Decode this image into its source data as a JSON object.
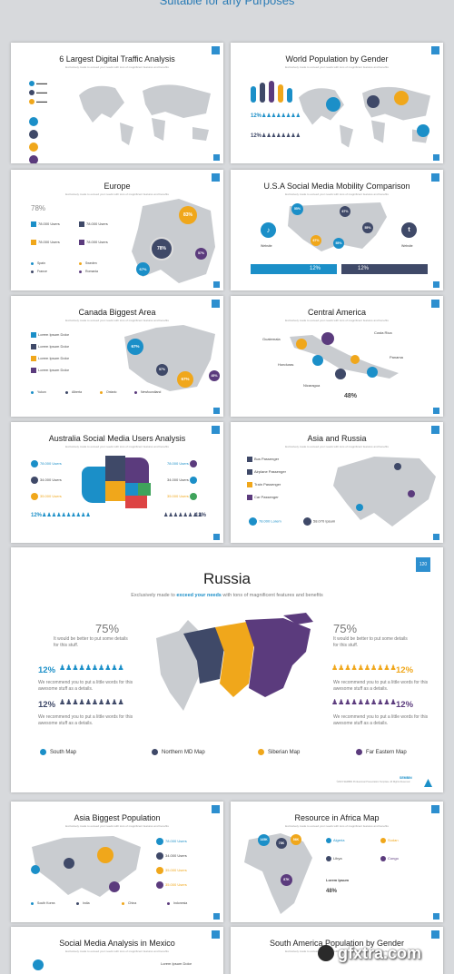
{
  "page": {
    "heading": "Suitable for any Purposes"
  },
  "colors": {
    "blue": "#1b8fc8",
    "navy": "#3f4968",
    "orange": "#f0a71b",
    "purple": "#5b3b7d",
    "grey": "#c9ccd0"
  },
  "cards": [
    {
      "title": "6 Largest Digital Traffic Analysis",
      "subtitle": "Exclusively made to exceed your needs with tons of magnificent features and benefits"
    },
    {
      "title": "World Population by Gender",
      "subtitle": "Exclusively made to exceed your needs with tons of magnificent features and benefits",
      "stat1": "12%",
      "stat2": "12%"
    },
    {
      "title": "Europe",
      "subtitle": "Exclusively made to exceed your needs with tons of magnificent features and benefits",
      "pct": "78%",
      "users": [
        "78.000 Users",
        "78.000 Users",
        "78.000 Users",
        "78.000 Users"
      ],
      "legend": [
        "Spain",
        "France",
        "Sweden",
        "Romania"
      ],
      "bubbles": [
        "83%",
        "78%",
        "67%",
        "57%"
      ]
    },
    {
      "title": "U.S.A Social Media Mobility Comparison",
      "subtitle": "Exclusively made to exceed your needs with tons of magnificent features and benefits",
      "left_label": "Website",
      "right_label": "Website",
      "stat1": "12%",
      "stat2": "12%",
      "bubbles": [
        "55%",
        "67%",
        "67%",
        "55%",
        "55%"
      ]
    },
    {
      "title": "Canada Biggest Area",
      "subtitle": "Exclusively made to exceed your needs with tons of magnificent features and benefits",
      "items": [
        "Lorem Ipsum Dolor",
        "Lorem Ipsum Dolor",
        "Lorem Ipsum Dolor",
        "Lorem Ipsum Dolor"
      ],
      "legend": [
        "Yukon",
        "Alberta",
        "Ontario",
        "Newfoundland"
      ],
      "bubbles": [
        "67%",
        "57%",
        "67%",
        "45%"
      ]
    },
    {
      "title": "Central America",
      "subtitle": "Exclusively made to exceed your needs with tons of magnificent features and benefits",
      "places": [
        "Guatemala",
        "Costa Rica",
        "Honduras",
        "Panama",
        "Nicaragua"
      ],
      "pct": "48%"
    },
    {
      "title": "Australia Social Media Users Analysis",
      "subtitle": "Exclusively made to exceed your needs with tons of magnificent features and benefits",
      "users": [
        "78.000 Users",
        "34.000 Users",
        "35.000 Users",
        "78.000 Users",
        "34.000 Users",
        "35.000 Users"
      ],
      "stat1": "12%",
      "stat2": "12%"
    },
    {
      "title": "Asia and Russia",
      "subtitle": "Exclusively made to exceed your needs with tons of magnificent features and benefits",
      "items": [
        "Bus Passenger",
        "Airplane Passenger",
        "Train Passenger",
        "Car Passenger"
      ],
      "foot1": "78.000 Lorem",
      "foot2": "58.070 Ipsum"
    }
  ],
  "russia": {
    "title": "Russia",
    "subtitle_pre": "Exclusively made to ",
    "subtitle_em": "exceed your needs",
    "subtitle_post": " with tons of magnificent features and benefits",
    "badge": "120",
    "left_pct": "75%",
    "left_desc": "It would be better to put some details for this stuff.",
    "right_pct": "75%",
    "right_desc": "It would be better to put some details for this stuff.",
    "stat_rows": [
      {
        "pct": "12%",
        "desc": "We recommend you to put a little words for this awesome stuff as a details."
      },
      {
        "pct": "12%",
        "desc": "We recommend you to put a little words for this awesome stuff as a details."
      },
      {
        "pct": "12%",
        "desc": "We recommend you to put a little words for this awesome stuff as a details."
      },
      {
        "pct": "12%",
        "desc": "We recommend you to put a little words for this awesome stuff as a details."
      }
    ],
    "legend": [
      "South Map",
      "Northern MD Map",
      "Siberian Map",
      "Far Eastern Map"
    ],
    "brand": "SEMBIN",
    "copyright": "©2015 SEMBIN Professional Presentation Template. All Rights Reserved."
  },
  "cards2": [
    {
      "title": "Asia Biggest Population",
      "subtitle": "Exclusively made to exceed your needs with tons of magnificent features and benefits",
      "users": [
        "78.000 Users",
        "34.000 Users",
        "35.000 Users",
        "35.000 Users"
      ],
      "legend": [
        "South Korea",
        "India",
        "China",
        "Indonesia"
      ]
    },
    {
      "title": "Resource in Africa Map",
      "subtitle": "Exclusively made to exceed your needs with tons of magnificent features and benefits",
      "items": [
        "Algeria",
        "Sudan",
        "Libya",
        "Congo"
      ],
      "note": "Lorem Ipsum",
      "pct": "48%",
      "bubbles": [
        "145K",
        "78K",
        "56K",
        "87K"
      ]
    },
    {
      "title": "Social Media Analysis in Mexico",
      "subtitle": "Exclusively made to exceed your needs with tons of magnificent features and benefits",
      "item": "Lorem Ipsum Dolor"
    },
    {
      "title": "South America Population by Gender",
      "subtitle": "Exclusively made to exceed your needs with tons of magnificent features and benefits"
    }
  ],
  "watermark": "gfxtra.com"
}
